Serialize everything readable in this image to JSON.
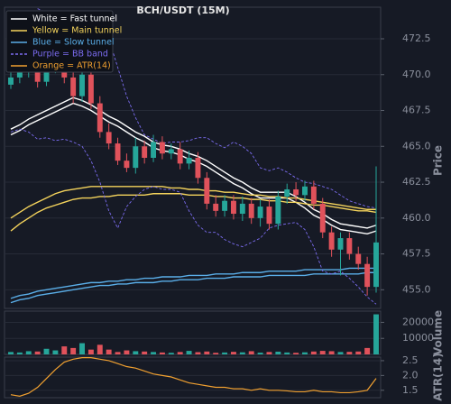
{
  "chart_data": [
    {
      "type": "candlestick",
      "title": "BCH/USDT (15M)",
      "y_label": "Price",
      "ylim": [
        453.7,
        474.7
      ],
      "yticks": [
        {
          "value": 455,
          "label": "455.0"
        },
        457.5,
        {
          "value": 460,
          "label": "460.0"
        },
        462.5,
        {
          "value": 465,
          "label": "465.0"
        },
        467.5,
        {
          "value": 470,
          "label": "470.0"
        },
        472.5
      ],
      "grid": true,
      "up_color": "#26a69a",
      "down_color": "#e0525b",
      "open": [
        469.3,
        469.8,
        470.2,
        470.8,
        469.5,
        470.5,
        471.0,
        469.8,
        468.5,
        470.0,
        468.0,
        466.0,
        465.2,
        464.0,
        463.5,
        465.0,
        464.2,
        465.3,
        464.5,
        464.8,
        463.8,
        464.2,
        462.8,
        461.0,
        460.5,
        461.2,
        460.3,
        461.0,
        460.0,
        460.8,
        459.6,
        461.5,
        462.0,
        461.6,
        462.2,
        461.0,
        459.0,
        457.8,
        458.6,
        457.5,
        456.8,
        455.2
      ],
      "high": [
        470.3,
        470.7,
        471.5,
        471.3,
        471.0,
        471.6,
        471.4,
        470.3,
        470.6,
        470.4,
        468.5,
        466.6,
        465.6,
        464.5,
        465.6,
        465.4,
        465.8,
        465.7,
        465.2,
        465.3,
        464.7,
        464.6,
        463.2,
        461.6,
        461.6,
        461.6,
        461.5,
        461.4,
        461.3,
        461.3,
        461.9,
        462.4,
        462.5,
        462.6,
        462.6,
        461.4,
        459.4,
        459.0,
        459.0,
        458.0,
        457.3,
        463.6
      ],
      "low": [
        469.0,
        469.4,
        469.8,
        469.1,
        469.2,
        470.1,
        469.4,
        468.0,
        468.1,
        467.6,
        465.6,
        464.8,
        463.7,
        463.2,
        463.1,
        463.8,
        463.9,
        464.1,
        464.1,
        463.4,
        463.4,
        462.4,
        460.6,
        460.1,
        460.1,
        459.9,
        459.8,
        459.6,
        459.4,
        459.2,
        459.2,
        461.0,
        461.2,
        461.2,
        460.6,
        458.6,
        457.3,
        456.0,
        457.1,
        456.4,
        454.6,
        454.8
      ],
      "close": [
        469.8,
        470.2,
        470.8,
        469.5,
        470.5,
        471.0,
        469.8,
        468.5,
        470.0,
        468.0,
        466.0,
        465.2,
        464.0,
        463.5,
        465.0,
        464.2,
        465.3,
        464.5,
        464.8,
        463.8,
        464.2,
        462.8,
        461.0,
        460.5,
        461.2,
        460.3,
        461.0,
        460.0,
        460.8,
        459.6,
        461.5,
        462.0,
        461.6,
        462.2,
        461.0,
        459.0,
        457.8,
        458.6,
        457.5,
        456.8,
        455.2,
        458.3
      ],
      "series": [
        {
          "name": "White = Fast tunnel",
          "color": "#ffffff",
          "dash": false,
          "lines": [
            [
              466.2,
              466.5,
              466.9,
              467.2,
              467.5,
              467.8,
              468.1,
              468.4,
              468.2,
              467.9,
              467.5,
              467.1,
              466.8,
              466.4,
              466.0,
              465.7,
              465.3,
              465.1,
              465.0,
              464.8,
              464.5,
              464.3,
              464.0,
              463.6,
              463.2,
              462.8,
              462.5,
              462.1,
              461.8,
              461.8,
              461.8,
              461.8,
              461.5,
              461.1,
              460.6,
              460.3,
              459.9,
              459.6,
              459.5,
              459.4,
              459.3,
              459.5
            ],
            [
              465.8,
              466.1,
              466.5,
              466.8,
              467.1,
              467.4,
              467.7,
              468.0,
              467.8,
              467.5,
              467.1,
              466.7,
              466.4,
              466.0,
              465.6,
              465.3,
              464.9,
              464.7,
              464.6,
              464.4,
              464.1,
              463.9,
              463.6,
              463.2,
              462.8,
              462.4,
              462.1,
              461.7,
              461.4,
              461.4,
              461.4,
              461.4,
              461.1,
              460.7,
              460.2,
              459.9,
              459.5,
              459.2,
              459.1,
              459.0,
              458.9,
              459.1
            ]
          ]
        },
        {
          "name": "Yellow = Main tunnel",
          "color": "#f5d45c",
          "dash": false,
          "lines": [
            [
              460.0,
              460.4,
              460.8,
              461.1,
              461.4,
              461.7,
              461.9,
              462.0,
              462.1,
              462.2,
              462.2,
              462.2,
              462.2,
              462.2,
              462.2,
              462.2,
              462.2,
              462.2,
              462.1,
              462.1,
              462.0,
              462.0,
              461.9,
              461.9,
              461.8,
              461.8,
              461.7,
              461.6,
              461.6,
              461.5,
              461.5,
              461.4,
              461.4,
              461.3,
              461.2,
              461.1,
              461.0,
              460.9,
              460.8,
              460.7,
              460.6,
              460.6
            ],
            [
              459.1,
              459.6,
              460.0,
              460.4,
              460.7,
              460.9,
              461.1,
              461.3,
              461.4,
              461.4,
              461.5,
              461.5,
              461.6,
              461.6,
              461.6,
              461.6,
              461.7,
              461.7,
              461.7,
              461.7,
              461.6,
              461.6,
              461.6,
              461.5,
              461.5,
              461.4,
              461.4,
              461.3,
              461.3,
              461.2,
              461.2,
              461.1,
              461.1,
              461.0,
              460.9,
              460.9,
              460.8,
              460.7,
              460.6,
              460.5,
              460.5,
              460.4
            ]
          ]
        },
        {
          "name": "Blue = Slow tunnel",
          "color": "#5aaee8",
          "dash": false,
          "lines": [
            [
              454.4,
              454.6,
              454.7,
              454.9,
              455.0,
              455.1,
              455.2,
              455.3,
              455.4,
              455.5,
              455.5,
              455.6,
              455.6,
              455.7,
              455.7,
              455.8,
              455.8,
              455.9,
              455.9,
              455.9,
              456.0,
              456.0,
              456.0,
              456.1,
              456.1,
              456.1,
              456.2,
              456.2,
              456.2,
              456.3,
              456.3,
              456.3,
              456.3,
              456.4,
              456.4,
              456.4,
              456.4,
              456.4,
              456.5,
              456.5,
              456.5,
              456.5
            ],
            [
              454.1,
              454.3,
              454.4,
              454.6,
              454.7,
              454.8,
              454.9,
              455.0,
              455.1,
              455.2,
              455.3,
              455.3,
              455.4,
              455.4,
              455.5,
              455.5,
              455.5,
              455.6,
              455.6,
              455.7,
              455.7,
              455.7,
              455.8,
              455.8,
              455.8,
              455.9,
              455.9,
              455.9,
              455.9,
              456.0,
              456.0,
              456.0,
              456.0,
              456.0,
              456.1,
              456.1,
              456.1,
              456.1,
              456.1,
              456.1,
              456.2,
              456.2
            ]
          ]
        },
        {
          "name": "Purple = BB band",
          "color": "#7b6cf0",
          "dash": true,
          "lines": [
            [
              null,
              null,
              null,
              474.6,
              474.3,
              474.0,
              473.9,
              473.8,
              473.6,
              473.4,
              473.2,
              472.5,
              470.5,
              468.5,
              467.0,
              465.8,
              465.5,
              465.2,
              465.3,
              465.3,
              465.4,
              465.6,
              465.6,
              465.2,
              464.9,
              465.3,
              465.0,
              464.5,
              463.5,
              463.3,
              463.5,
              463.2,
              462.8,
              462.5,
              462.4,
              462.2,
              462.0,
              461.6,
              461.2,
              461.0,
              460.8,
              460.7
            ],
            [
              466.0,
              466.2,
              466.0,
              465.5,
              465.6,
              465.4,
              465.5,
              465.3,
              465.0,
              464.0,
              462.5,
              460.5,
              459.3,
              460.8,
              461.5,
              462.0,
              462.2,
              462.0,
              462.0,
              461.8,
              460.5,
              459.5,
              459.0,
              459.0,
              458.5,
              458.2,
              458.0,
              458.3,
              458.6,
              459.3,
              459.5,
              459.6,
              459.7,
              459.2,
              458.0,
              456.3,
              456.1,
              456.3,
              455.8,
              455.2,
              454.5,
              454.0
            ]
          ]
        }
      ]
    },
    {
      "type": "bar",
      "y_label": "Volume",
      "ylim": [
        0,
        27000
      ],
      "yticks": [
        10000,
        20000
      ],
      "values": [
        1500,
        1200,
        2000,
        1800,
        3500,
        2500,
        5000,
        4000,
        7000,
        3000,
        6000,
        3000,
        1500,
        2500,
        2000,
        1800,
        1500,
        1200,
        1000,
        1500,
        2200,
        1400,
        1800,
        1000,
        1200,
        1600,
        1300,
        2000,
        1100,
        1500,
        1700,
        1200,
        1000,
        1300,
        1800,
        2200,
        2000,
        1500,
        1600,
        1800,
        4000,
        25000
      ]
    },
    {
      "type": "line",
      "y_label": "ATR(14)",
      "ylim": [
        1.25,
        2.62
      ],
      "yticks": [
        1.5,
        {
          "value": 2,
          "label": "2.0"
        },
        2.5
      ],
      "series": [
        {
          "name": "Orange = ATR(14)",
          "color": "#f0a030",
          "values": [
            1.35,
            1.3,
            1.4,
            1.6,
            1.9,
            2.2,
            2.45,
            2.55,
            2.6,
            2.6,
            2.55,
            2.5,
            2.4,
            2.3,
            2.25,
            2.15,
            2.05,
            2.0,
            1.95,
            1.85,
            1.75,
            1.7,
            1.65,
            1.6,
            1.6,
            1.55,
            1.55,
            1.5,
            1.55,
            1.5,
            1.5,
            1.48,
            1.45,
            1.45,
            1.5,
            1.45,
            1.45,
            1.42,
            1.42,
            1.45,
            1.5,
            1.9
          ]
        }
      ]
    }
  ]
}
